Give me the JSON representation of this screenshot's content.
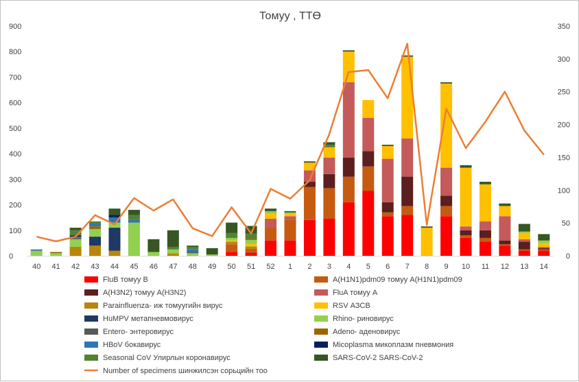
{
  "chart_data": {
    "type": "bar",
    "stacked": true,
    "title": "Томуу , ТТӨ",
    "categories": [
      "40",
      "41",
      "42",
      "43",
      "44",
      "45",
      "46",
      "47",
      "48",
      "49",
      "50",
      "51",
      "52",
      "1",
      "2",
      "3",
      "4",
      "5",
      "6",
      "7",
      "8",
      "9",
      "10",
      "11",
      "12",
      "13",
      "14"
    ],
    "y_left": {
      "min": 0,
      "max": 900,
      "step": 100
    },
    "y_right": {
      "min": 0,
      "max": 350,
      "step": 50
    },
    "grid": false,
    "legend_position": "bottom",
    "series": [
      {
        "name": "FluB томуу B",
        "color": "#ff0000",
        "values": [
          0,
          0,
          0,
          0,
          0,
          0,
          0,
          0,
          0,
          0,
          15,
          12,
          60,
          60,
          140,
          145,
          210,
          255,
          155,
          160,
          0,
          155,
          70,
          55,
          40,
          20,
          20
        ]
      },
      {
        "name": "A(H1N1)pdm09 томуу A(H1N1)pdm09",
        "color": "#c55a11",
        "values": [
          0,
          0,
          0,
          0,
          0,
          0,
          0,
          0,
          0,
          0,
          30,
          15,
          50,
          80,
          130,
          120,
          100,
          95,
          15,
          35,
          0,
          40,
          10,
          15,
          5,
          5,
          5
        ]
      },
      {
        "name": "A(H3N2) томуу A(H3N2)",
        "color": "#5b1f1f",
        "values": [
          0,
          0,
          0,
          0,
          0,
          0,
          0,
          0,
          0,
          0,
          0,
          0,
          0,
          0,
          20,
          55,
          75,
          60,
          40,
          115,
          0,
          40,
          20,
          30,
          15,
          30,
          5
        ]
      },
      {
        "name": "FluA томуу A",
        "color": "#c55a5a",
        "values": [
          0,
          0,
          0,
          0,
          0,
          0,
          0,
          0,
          0,
          0,
          0,
          0,
          35,
          15,
          45,
          65,
          295,
          130,
          170,
          150,
          0,
          110,
          15,
          35,
          95,
          10,
          5
        ]
      },
      {
        "name": "Parainfluenza- иж томуугийн вирус",
        "color": "#b8860b",
        "values": [
          0,
          0,
          35,
          40,
          20,
          0,
          0,
          10,
          0,
          0,
          10,
          10,
          0,
          0,
          0,
          0,
          0,
          0,
          0,
          0,
          0,
          0,
          0,
          0,
          0,
          0,
          0
        ]
      },
      {
        "name": "RSV АЗСВ",
        "color": "#ffc000",
        "values": [
          0,
          0,
          0,
          0,
          0,
          0,
          0,
          0,
          0,
          0,
          5,
          10,
          20,
          10,
          30,
          40,
          120,
          70,
          50,
          320,
          110,
          330,
          230,
          145,
          40,
          25,
          15
        ]
      },
      {
        "name": "HuMPV метапневмовирус",
        "color": "#1f3864",
        "values": [
          0,
          0,
          0,
          35,
          90,
          0,
          0,
          0,
          0,
          0,
          0,
          0,
          0,
          0,
          0,
          0,
          0,
          0,
          0,
          0,
          0,
          0,
          0,
          0,
          0,
          0,
          0
        ]
      },
      {
        "name": "Rhino- риновирус",
        "color": "#92d050",
        "values": [
          20,
          10,
          30,
          30,
          20,
          130,
          15,
          15,
          10,
          5,
          10,
          15,
          10,
          5,
          0,
          0,
          0,
          0,
          0,
          0,
          0,
          0,
          0,
          0,
          0,
          5,
          10
        ]
      },
      {
        "name": "Entero- энтеровирус",
        "color": "#595959",
        "values": [
          0,
          0,
          5,
          0,
          0,
          0,
          0,
          0,
          5,
          0,
          0,
          0,
          0,
          0,
          0,
          0,
          0,
          0,
          0,
          0,
          0,
          0,
          0,
          0,
          0,
          0,
          0
        ]
      },
      {
        "name": "Adeno- аденовирус",
        "color": "#9c6500",
        "values": [
          0,
          5,
          0,
          10,
          0,
          0,
          0,
          0,
          0,
          0,
          0,
          5,
          0,
          0,
          0,
          0,
          0,
          0,
          0,
          0,
          0,
          0,
          0,
          0,
          0,
          0,
          0
        ]
      },
      {
        "name": "HBoV бокавирус",
        "color": "#2e75b6",
        "values": [
          5,
          0,
          5,
          10,
          20,
          10,
          0,
          0,
          10,
          0,
          0,
          0,
          0,
          0,
          0,
          0,
          0,
          0,
          0,
          0,
          0,
          0,
          0,
          0,
          0,
          0,
          0
        ]
      },
      {
        "name": "Micoplasma микоплазм пневмония",
        "color": "#002060",
        "values": [
          0,
          0,
          5,
          0,
          10,
          0,
          0,
          0,
          0,
          0,
          0,
          0,
          0,
          0,
          0,
          0,
          0,
          0,
          0,
          0,
          0,
          0,
          0,
          0,
          0,
          0,
          0
        ]
      },
      {
        "name": "Seasonal CoV Улирлын коронавирус",
        "color": "#548235",
        "values": [
          0,
          0,
          20,
          10,
          0,
          20,
          0,
          10,
          10,
          0,
          20,
          20,
          0,
          0,
          0,
          10,
          0,
          0,
          0,
          0,
          0,
          0,
          0,
          0,
          0,
          0,
          0
        ]
      },
      {
        "name": "SARS-CoV-2 SARS-CoV-2",
        "color": "#375623",
        "values": [
          0,
          0,
          10,
          0,
          25,
          20,
          50,
          65,
          5,
          25,
          40,
          30,
          10,
          5,
          5,
          10,
          5,
          0,
          5,
          5,
          5,
          5,
          10,
          10,
          10,
          30,
          25
        ]
      }
    ],
    "line": {
      "name": "Number of specimens шинжилсэн сорьцийн тоо",
      "color": "#ed7d31",
      "axis": "right",
      "values": [
        29,
        22,
        29,
        62,
        48,
        88,
        69,
        86,
        42,
        30,
        74,
        34,
        102,
        87,
        115,
        185,
        280,
        283,
        240,
        323,
        47,
        224,
        164,
        204,
        250,
        191,
        154
      ]
    }
  }
}
